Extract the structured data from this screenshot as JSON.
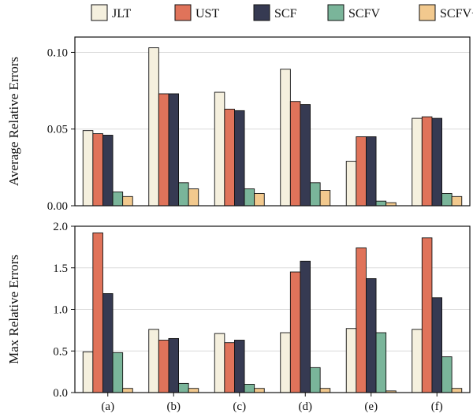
{
  "legend": [
    "JLT",
    "UST",
    "SCF",
    "SCFV",
    "SCFV+"
  ],
  "colors": {
    "JLT": "#f5f0de",
    "UST": "#e0735a",
    "SCF": "#363a52",
    "SCFV": "#7ab59a",
    "SCFV+": "#f2c98e"
  },
  "chart_data": [
    {
      "type": "bar",
      "ylabel": "Average Relative Errors",
      "categories": [
        "(a)",
        "(b)",
        "(c)",
        "(d)",
        "(e)",
        "(f)"
      ],
      "ylim": [
        0,
        0.11
      ],
      "yticks": [
        0.0,
        0.05,
        0.1
      ],
      "yticklabels": [
        "0.00",
        "0.05",
        "0.10"
      ],
      "grid": true,
      "series": [
        {
          "name": "JLT",
          "values": [
            0.049,
            0.103,
            0.074,
            0.089,
            0.029,
            0.057
          ]
        },
        {
          "name": "UST",
          "values": [
            0.047,
            0.073,
            0.063,
            0.068,
            0.045,
            0.058
          ]
        },
        {
          "name": "SCF",
          "values": [
            0.046,
            0.073,
            0.062,
            0.066,
            0.045,
            0.057
          ]
        },
        {
          "name": "SCFV",
          "values": [
            0.009,
            0.015,
            0.011,
            0.015,
            0.003,
            0.008
          ]
        },
        {
          "name": "SCFV+",
          "values": [
            0.006,
            0.011,
            0.008,
            0.01,
            0.002,
            0.006
          ]
        }
      ]
    },
    {
      "type": "bar",
      "ylabel": "Max Relative Errors",
      "xlabel": "",
      "categories": [
        "(a)",
        "(b)",
        "(c)",
        "(d)",
        "(e)",
        "(f)"
      ],
      "ylim": [
        0,
        2.0
      ],
      "yticks": [
        0.0,
        0.5,
        1.0,
        1.5,
        2.0
      ],
      "yticklabels": [
        "0.0",
        "0.5",
        "1.0",
        "1.5",
        "2.0"
      ],
      "grid": true,
      "series": [
        {
          "name": "JLT",
          "values": [
            0.49,
            0.76,
            0.71,
            0.72,
            0.77,
            0.76
          ]
        },
        {
          "name": "UST",
          "values": [
            1.92,
            0.63,
            0.6,
            1.45,
            1.74,
            1.86
          ]
        },
        {
          "name": "SCF",
          "values": [
            1.19,
            0.65,
            0.63,
            1.58,
            1.37,
            1.14
          ]
        },
        {
          "name": "SCFV",
          "values": [
            0.48,
            0.11,
            0.1,
            0.3,
            0.72,
            0.43
          ]
        },
        {
          "name": "SCFV+",
          "values": [
            0.05,
            0.05,
            0.05,
            0.05,
            0.02,
            0.05
          ]
        }
      ]
    }
  ]
}
